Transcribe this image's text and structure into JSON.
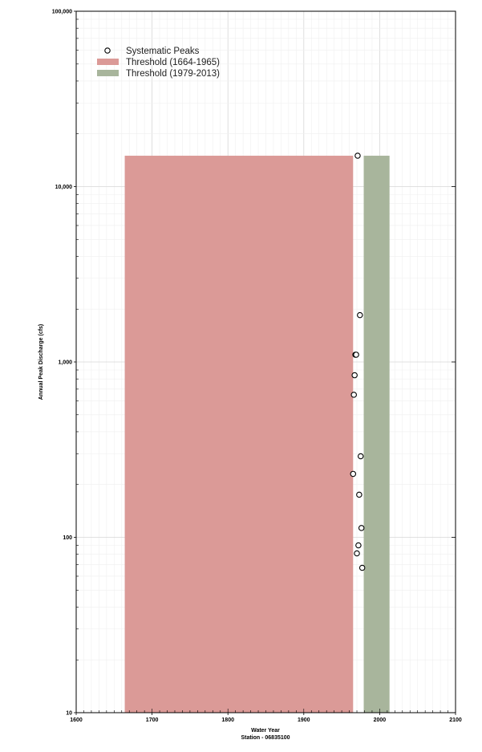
{
  "chart_data": {
    "type": "scatter",
    "title": "",
    "xlabel": "Water Year",
    "xlabel2": "Station - 06835100",
    "ylabel": "Annual Peak Discharge (cfs)",
    "xlim": [
      1600,
      2100
    ],
    "ylim": [
      10,
      100000
    ],
    "yscale": "log",
    "grid": true,
    "legend_position": "top-left",
    "x_ticks": [
      "1600",
      "1700",
      "1800",
      "1900",
      "2000",
      "2100"
    ],
    "y_ticks": [
      {
        "value": 10,
        "label": "10"
      },
      {
        "value": 100,
        "label": "100"
      },
      {
        "value": 1000,
        "label": "1,000"
      },
      {
        "value": 10000,
        "label": "10,000"
      },
      {
        "value": 100000,
        "label": "100,000"
      }
    ],
    "thresholds": [
      {
        "name": "Threshold (1664-1965)",
        "x_start": 1664,
        "x_end": 1965,
        "lower": 10,
        "upper": 15000,
        "color": "#db9a97"
      },
      {
        "name": "Threshold (1979-2013)",
        "x_start": 1979,
        "x_end": 2013,
        "lower": 10,
        "upper": 15000,
        "color": "#a8b59c"
      }
    ],
    "series": [
      {
        "name": "Systematic Peaks",
        "marker": "open-circle",
        "points": [
          {
            "x": 1971,
            "y": 15000
          },
          {
            "x": 1974,
            "y": 1850
          },
          {
            "x": 1968,
            "y": 1100
          },
          {
            "x": 1969,
            "y": 1100
          },
          {
            "x": 1967,
            "y": 840
          },
          {
            "x": 1966,
            "y": 650
          },
          {
            "x": 1975,
            "y": 290
          },
          {
            "x": 1965,
            "y": 230
          },
          {
            "x": 1973,
            "y": 175
          },
          {
            "x": 1976,
            "y": 113
          },
          {
            "x": 1972,
            "y": 90
          },
          {
            "x": 1970,
            "y": 81
          },
          {
            "x": 1977,
            "y": 67
          }
        ]
      }
    ]
  }
}
